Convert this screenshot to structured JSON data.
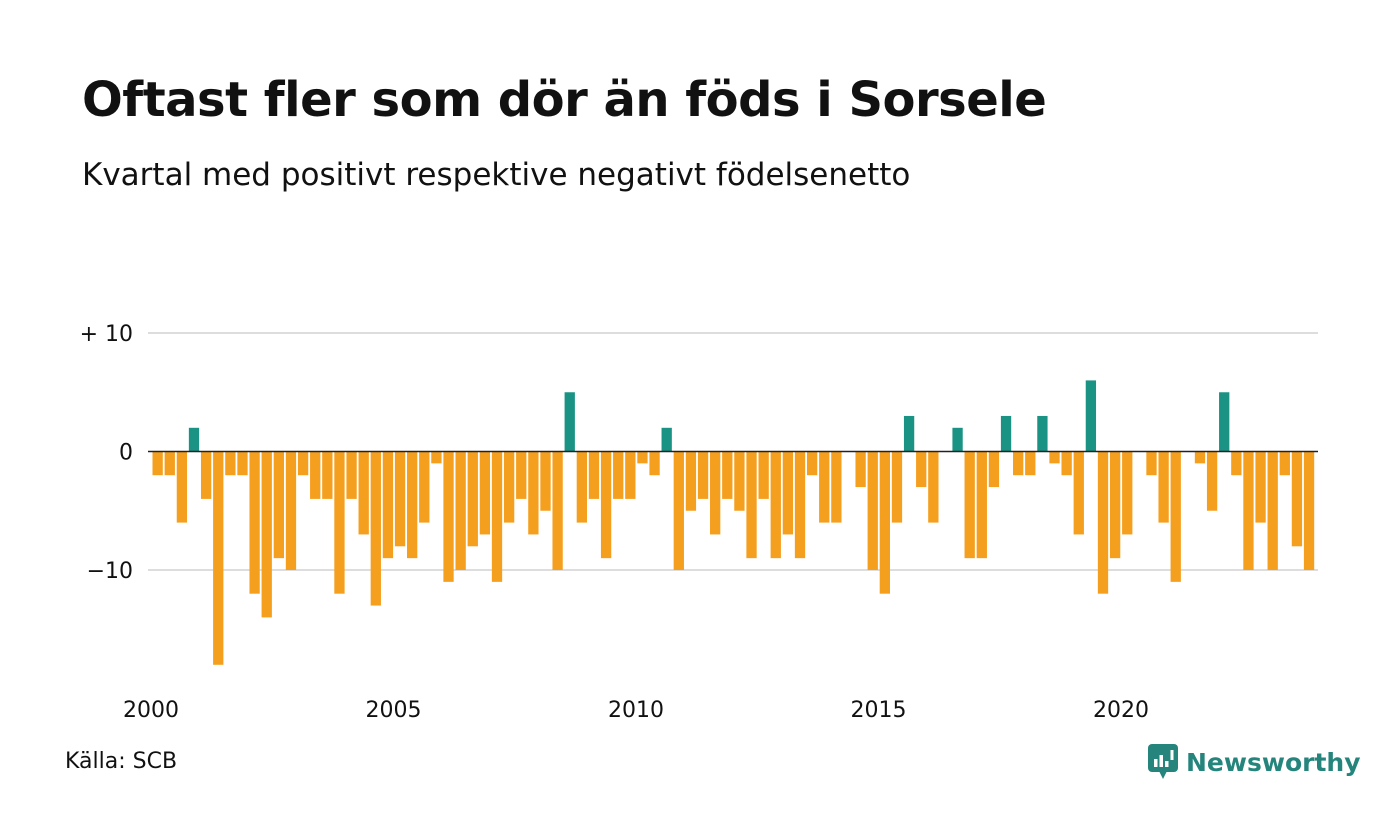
{
  "header": {
    "title": "Oftast fler som dör än föds i Sorsele",
    "subtitle": "Kvartal med positivt respektive negativt födelsenetto"
  },
  "footer": {
    "source": "Källa: SCB",
    "brand": "Newsworthy",
    "brand_icon": "newsworthy-logo-icon"
  },
  "colors": {
    "positive": "#1a9385",
    "negative": "#f59f1e",
    "grid": "#dddddd",
    "zero_line": "#222222",
    "brand": "#25857d"
  },
  "chart_data": {
    "type": "bar",
    "ylim": [
      -18,
      10
    ],
    "yticks": [
      10,
      0,
      -10
    ],
    "ytick_labels": [
      "+ 10",
      "0",
      "−10"
    ],
    "xticks": [
      2000,
      2005,
      2010,
      2015,
      2020
    ],
    "xtick_labels": [
      "2000",
      "2005",
      "2010",
      "2015",
      "2020"
    ],
    "x_start": "2000-Q1",
    "grid": true,
    "legend": "none",
    "values": [
      -2,
      -2,
      -6,
      2,
      -4,
      -18,
      -2,
      -2,
      -12,
      -14,
      -9,
      -10,
      -2,
      -4,
      -4,
      -12,
      -4,
      -7,
      -13,
      -9,
      -8,
      -9,
      -6,
      -1,
      -11,
      -10,
      -8,
      -7,
      -11,
      -6,
      -4,
      -7,
      -5,
      -10,
      5,
      -6,
      -4,
      -9,
      -4,
      -4,
      -1,
      -2,
      2,
      -10,
      -5,
      -4,
      -7,
      -4,
      -5,
      -9,
      -4,
      -9,
      -7,
      -9,
      -2,
      -6,
      -6,
      0,
      -3,
      -10,
      -12,
      -6,
      3,
      -3,
      -6,
      0,
      2,
      -9,
      -9,
      -3,
      3,
      -2,
      -2,
      3,
      -1,
      -2,
      -7,
      6,
      -12,
      -9,
      -7,
      0,
      -2,
      -6,
      -11,
      0,
      -1,
      -5,
      5,
      -2,
      -10,
      -6,
      -10,
      -2,
      -8,
      -10
    ]
  }
}
